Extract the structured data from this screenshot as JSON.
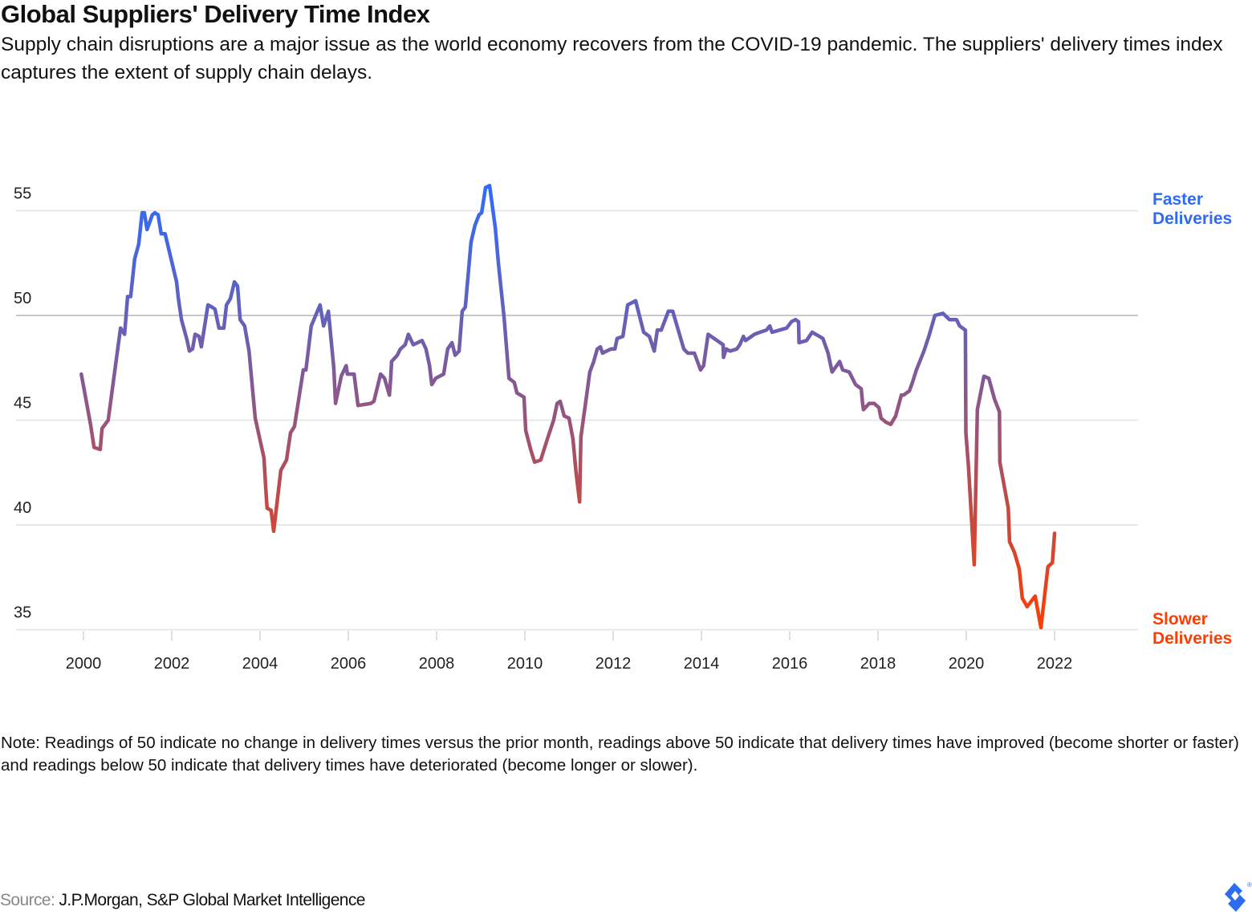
{
  "header": {
    "title": "Global Suppliers' Delivery Time Index",
    "subtitle": "Supply chain disruptions are a major issue as the world economy recovers from the COVID-19 pandemic. The suppliers' delivery times index captures the extent of supply chain delays."
  },
  "annotations": {
    "faster": [
      "Faster",
      "Deliveries"
    ],
    "slower": [
      "Slower",
      "Deliveries"
    ],
    "faster_color": "#2f6bf0",
    "slower_color": "#ff3d00"
  },
  "note": "Note: Readings of 50 indicate no change in delivery times versus the prior month, readings above 50 indicate that delivery times have improved (become shorter or faster) and readings below 50 indicate that delivery times have deteriorated (become longer or slower).",
  "source": {
    "label": "Source:",
    "value": "J.P.Morgan, S&P Global Market Intelligence"
  },
  "chart_data": {
    "type": "line",
    "title": "Global Suppliers' Delivery Time Index",
    "xlabel": "",
    "ylabel": "",
    "xlim": [
      1999.8,
      2023.2
    ],
    "ylim": [
      35,
      55
    ],
    "x_ticks": [
      "2000",
      "2002",
      "2004",
      "2006",
      "2008",
      "2010",
      "2012",
      "2014",
      "2016",
      "2018",
      "2020",
      "2022"
    ],
    "y_ticks": [
      "55",
      "50",
      "45",
      "40",
      "35"
    ],
    "grid": "horizontal",
    "reference_line": 50,
    "line_gradient": {
      "top": "#2d6bff",
      "mid": "#6b5fb3",
      "low": "#c24a45",
      "bottom": "#ff3d00"
    },
    "series": [
      {
        "points": [
          [
            1999.95,
            47.2
          ],
          [
            2000.16,
            44.8
          ],
          [
            2000.24,
            43.7
          ],
          [
            2000.38,
            43.6
          ],
          [
            2000.42,
            44.6
          ],
          [
            2000.56,
            45.0
          ],
          [
            2000.84,
            49.4
          ],
          [
            2000.93,
            49.1
          ],
          [
            2001.0,
            50.9
          ],
          [
            2001.07,
            50.9
          ],
          [
            2001.16,
            52.7
          ],
          [
            2001.25,
            53.4
          ],
          [
            2001.33,
            54.9
          ],
          [
            2001.38,
            54.9
          ],
          [
            2001.44,
            54.1
          ],
          [
            2001.56,
            54.8
          ],
          [
            2001.62,
            54.9
          ],
          [
            2001.69,
            54.8
          ],
          [
            2001.76,
            53.9
          ],
          [
            2001.85,
            53.9
          ],
          [
            2002.11,
            51.6
          ],
          [
            2002.15,
            50.8
          ],
          [
            2002.22,
            49.8
          ],
          [
            2002.35,
            48.8
          ],
          [
            2002.4,
            48.3
          ],
          [
            2002.47,
            48.4
          ],
          [
            2002.53,
            49.1
          ],
          [
            2002.62,
            49.0
          ],
          [
            2002.67,
            48.5
          ],
          [
            2002.82,
            50.5
          ],
          [
            2002.91,
            50.4
          ],
          [
            2002.98,
            50.3
          ],
          [
            2003.07,
            49.4
          ],
          [
            2003.18,
            49.4
          ],
          [
            2003.24,
            50.5
          ],
          [
            2003.33,
            50.8
          ],
          [
            2003.42,
            51.6
          ],
          [
            2003.49,
            51.4
          ],
          [
            2003.55,
            49.8
          ],
          [
            2003.65,
            49.5
          ],
          [
            2003.75,
            48.3
          ],
          [
            2003.89,
            45.1
          ],
          [
            2004.09,
            43.2
          ],
          [
            2004.13,
            41.7
          ],
          [
            2004.16,
            40.8
          ],
          [
            2004.25,
            40.7
          ],
          [
            2004.31,
            39.7
          ],
          [
            2004.47,
            42.6
          ],
          [
            2004.6,
            43.1
          ],
          [
            2004.69,
            44.4
          ],
          [
            2004.78,
            44.7
          ],
          [
            2004.98,
            47.4
          ],
          [
            2005.04,
            47.4
          ],
          [
            2005.16,
            49.5
          ],
          [
            2005.36,
            50.5
          ],
          [
            2005.44,
            49.5
          ],
          [
            2005.55,
            50.2
          ],
          [
            2005.67,
            47.5
          ],
          [
            2005.71,
            45.8
          ],
          [
            2005.84,
            47.1
          ],
          [
            2005.95,
            47.6
          ],
          [
            2005.98,
            47.2
          ],
          [
            2006.13,
            47.2
          ],
          [
            2006.22,
            45.7
          ],
          [
            2006.51,
            45.8
          ],
          [
            2006.58,
            45.9
          ],
          [
            2006.73,
            47.2
          ],
          [
            2006.82,
            47.0
          ],
          [
            2006.93,
            46.2
          ],
          [
            2006.96,
            47.0
          ],
          [
            2006.98,
            47.8
          ],
          [
            2007.11,
            48.1
          ],
          [
            2007.18,
            48.4
          ],
          [
            2007.29,
            48.6
          ],
          [
            2007.36,
            49.1
          ],
          [
            2007.47,
            48.6
          ],
          [
            2007.67,
            48.8
          ],
          [
            2007.76,
            48.4
          ],
          [
            2007.84,
            47.6
          ],
          [
            2007.89,
            46.7
          ],
          [
            2007.98,
            47.0
          ],
          [
            2008.16,
            47.2
          ],
          [
            2008.25,
            48.4
          ],
          [
            2008.35,
            48.7
          ],
          [
            2008.42,
            48.1
          ],
          [
            2008.51,
            48.3
          ],
          [
            2008.58,
            50.2
          ],
          [
            2008.65,
            50.4
          ],
          [
            2008.78,
            53.5
          ],
          [
            2008.87,
            54.3
          ],
          [
            2008.96,
            54.8
          ],
          [
            2009.02,
            54.9
          ],
          [
            2009.11,
            56.1
          ],
          [
            2009.2,
            56.2
          ],
          [
            2009.33,
            54.2
          ],
          [
            2009.4,
            52.5
          ],
          [
            2009.53,
            49.9
          ],
          [
            2009.64,
            47.0
          ],
          [
            2009.76,
            46.8
          ],
          [
            2009.82,
            46.3
          ],
          [
            2009.98,
            46.1
          ],
          [
            2010.02,
            44.5
          ],
          [
            2010.13,
            43.6
          ],
          [
            2010.22,
            43.0
          ],
          [
            2010.36,
            43.1
          ],
          [
            2010.51,
            44.1
          ],
          [
            2010.65,
            45.0
          ],
          [
            2010.73,
            45.8
          ],
          [
            2010.8,
            45.9
          ],
          [
            2010.89,
            45.2
          ],
          [
            2011.0,
            45.1
          ],
          [
            2011.09,
            44.1
          ],
          [
            2011.16,
            42.5
          ],
          [
            2011.24,
            41.1
          ],
          [
            2011.27,
            44.2
          ],
          [
            2011.4,
            46.2
          ],
          [
            2011.47,
            47.3
          ],
          [
            2011.56,
            47.8
          ],
          [
            2011.64,
            48.4
          ],
          [
            2011.71,
            48.5
          ],
          [
            2011.76,
            48.2
          ],
          [
            2011.85,
            48.3
          ],
          [
            2011.95,
            48.4
          ],
          [
            2012.04,
            48.4
          ],
          [
            2012.09,
            48.9
          ],
          [
            2012.22,
            49.0
          ],
          [
            2012.33,
            50.5
          ],
          [
            2012.51,
            50.7
          ],
          [
            2012.69,
            49.2
          ],
          [
            2012.82,
            49.0
          ],
          [
            2012.93,
            48.3
          ],
          [
            2013.0,
            49.3
          ],
          [
            2013.09,
            49.3
          ],
          [
            2013.25,
            50.2
          ],
          [
            2013.35,
            50.2
          ],
          [
            2013.6,
            48.4
          ],
          [
            2013.69,
            48.2
          ],
          [
            2013.84,
            48.2
          ],
          [
            2013.98,
            47.4
          ],
          [
            2014.05,
            47.6
          ],
          [
            2014.15,
            49.1
          ],
          [
            2014.49,
            48.6
          ],
          [
            2014.5,
            48.0
          ],
          [
            2014.56,
            48.4
          ],
          [
            2014.65,
            48.3
          ],
          [
            2014.8,
            48.4
          ],
          [
            2014.87,
            48.6
          ],
          [
            2014.95,
            49.0
          ],
          [
            2015.0,
            48.8
          ],
          [
            2015.2,
            49.1
          ],
          [
            2015.33,
            49.2
          ],
          [
            2015.47,
            49.3
          ],
          [
            2015.55,
            49.5
          ],
          [
            2015.6,
            49.2
          ],
          [
            2015.93,
            49.4
          ],
          [
            2016.04,
            49.7
          ],
          [
            2016.13,
            49.8
          ],
          [
            2016.2,
            49.7
          ],
          [
            2016.21,
            48.7
          ],
          [
            2016.38,
            48.8
          ],
          [
            2016.51,
            49.2
          ],
          [
            2016.75,
            48.9
          ],
          [
            2016.87,
            48.2
          ],
          [
            2016.96,
            47.3
          ],
          [
            2017.13,
            47.8
          ],
          [
            2017.2,
            47.4
          ],
          [
            2017.35,
            47.3
          ],
          [
            2017.49,
            46.7
          ],
          [
            2017.62,
            46.5
          ],
          [
            2017.65,
            45.8
          ],
          [
            2017.67,
            45.5
          ],
          [
            2017.8,
            45.8
          ],
          [
            2017.91,
            45.8
          ],
          [
            2018.02,
            45.6
          ],
          [
            2018.07,
            45.1
          ],
          [
            2018.18,
            44.9
          ],
          [
            2018.29,
            44.8
          ],
          [
            2018.4,
            45.2
          ],
          [
            2018.53,
            46.2
          ],
          [
            2018.58,
            46.2
          ],
          [
            2018.71,
            46.4
          ],
          [
            2018.78,
            46.8
          ],
          [
            2018.87,
            47.4
          ],
          [
            2019.04,
            48.3
          ],
          [
            2019.15,
            49.0
          ],
          [
            2019.29,
            50.0
          ],
          [
            2019.47,
            50.1
          ],
          [
            2019.62,
            49.8
          ],
          [
            2019.78,
            49.8
          ],
          [
            2019.85,
            49.5
          ],
          [
            2019.98,
            49.3
          ],
          [
            2019.99,
            44.4
          ],
          [
            2020.05,
            42.8
          ],
          [
            2020.18,
            38.1
          ],
          [
            2020.25,
            45.5
          ],
          [
            2020.4,
            47.1
          ],
          [
            2020.51,
            47.0
          ],
          [
            2020.64,
            46.0
          ],
          [
            2020.75,
            45.4
          ],
          [
            2020.76,
            43.0
          ],
          [
            2020.95,
            40.8
          ],
          [
            2020.98,
            39.2
          ],
          [
            2021.09,
            38.7
          ],
          [
            2021.2,
            37.9
          ],
          [
            2021.27,
            36.5
          ],
          [
            2021.38,
            36.1
          ],
          [
            2021.56,
            36.6
          ],
          [
            2021.69,
            35.1
          ],
          [
            2021.85,
            38.0
          ],
          [
            2021.95,
            38.2
          ],
          [
            2022.0,
            39.6
          ]
        ]
      }
    ]
  }
}
